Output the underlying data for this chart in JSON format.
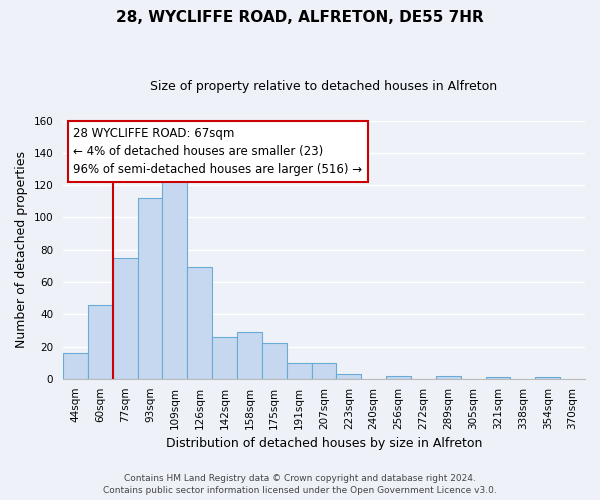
{
  "title": "28, WYCLIFFE ROAD, ALFRETON, DE55 7HR",
  "subtitle": "Size of property relative to detached houses in Alfreton",
  "xlabel": "Distribution of detached houses by size in Alfreton",
  "ylabel": "Number of detached properties",
  "bar_labels": [
    "44sqm",
    "60sqm",
    "77sqm",
    "93sqm",
    "109sqm",
    "126sqm",
    "142sqm",
    "158sqm",
    "175sqm",
    "191sqm",
    "207sqm",
    "223sqm",
    "240sqm",
    "256sqm",
    "272sqm",
    "289sqm",
    "305sqm",
    "321sqm",
    "338sqm",
    "354sqm",
    "370sqm"
  ],
  "bar_values": [
    16,
    46,
    75,
    112,
    123,
    69,
    26,
    29,
    22,
    10,
    10,
    3,
    0,
    2,
    0,
    2,
    0,
    1,
    0,
    1,
    0
  ],
  "bar_color": "#c5d8f0",
  "bar_edge_color": "#6aaad4",
  "ylim": [
    0,
    160
  ],
  "yticks": [
    0,
    20,
    40,
    60,
    80,
    100,
    120,
    140,
    160
  ],
  "red_line_color": "#cc0000",
  "annotation_title": "28 WYCLIFFE ROAD: 67sqm",
  "annotation_line1": "← 4% of detached houses are smaller (23)",
  "annotation_line2": "96% of semi-detached houses are larger (516) →",
  "annotation_box_color": "#ffffff",
  "annotation_box_edge": "#cc0000",
  "footer1": "Contains HM Land Registry data © Crown copyright and database right 2024.",
  "footer2": "Contains public sector information licensed under the Open Government Licence v3.0.",
  "background_color": "#eef2f8",
  "grid_color": "#ffffff",
  "title_fontsize": 11,
  "subtitle_fontsize": 9,
  "axis_label_fontsize": 9,
  "tick_fontsize": 7.5,
  "annotation_fontsize": 8.5,
  "footer_fontsize": 6.5
}
